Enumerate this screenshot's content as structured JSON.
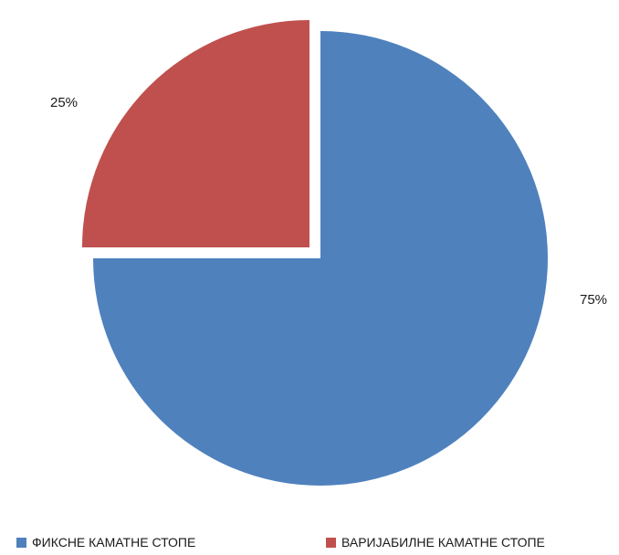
{
  "chart_data": {
    "type": "pie",
    "title": "",
    "slices": [
      {
        "label": "ФИКСНЕ КАМАТНЕ СТОПЕ",
        "value": 75,
        "data_label": "75%",
        "color": "#4f81bd",
        "exploded": false
      },
      {
        "label": "ВАРИЈАБИЛНЕ КАМАТНЕ СТОПЕ",
        "value": 25,
        "data_label": "25%",
        "color": "#c0504d",
        "exploded": true
      }
    ],
    "legend": {
      "position": "bottom",
      "entries": [
        "ФИКСНЕ КАМАТНЕ СТОПЕ",
        "ВАРИЈАБИЛНЕ КАМАТНЕ СТОПЕ"
      ]
    }
  }
}
